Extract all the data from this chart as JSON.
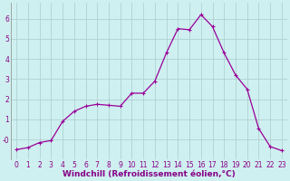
{
  "x": [
    0,
    1,
    2,
    3,
    4,
    5,
    6,
    7,
    8,
    9,
    10,
    11,
    12,
    13,
    14,
    15,
    16,
    17,
    18,
    19,
    20,
    21,
    22,
    23
  ],
  "y": [
    -0.5,
    -0.4,
    -0.15,
    -0.05,
    0.9,
    1.4,
    1.65,
    1.75,
    1.7,
    1.65,
    2.3,
    2.3,
    2.9,
    4.3,
    5.5,
    5.45,
    6.2,
    5.6,
    4.3,
    3.2,
    2.5,
    0.55,
    -0.35,
    -0.55
  ],
  "line_color": "#990099",
  "marker": "+",
  "marker_size": 3,
  "marker_lw": 0.8,
  "bg_color": "#cff0f0",
  "grid_color": "#aacccc",
  "xlabel": "Windchill (Refroidissement éolien,°C)",
  "xlabel_color": "#880088",
  "xlabel_fontsize": 6.5,
  "ylim": [
    -1.0,
    6.8
  ],
  "xlim": [
    -0.5,
    23.5
  ],
  "yticks": [
    0,
    1,
    2,
    3,
    4,
    5,
    6
  ],
  "ytick_labels": [
    "-0",
    "1",
    "2",
    "3",
    "4",
    "5",
    "6"
  ],
  "xticks": [
    0,
    1,
    2,
    3,
    4,
    5,
    6,
    7,
    8,
    9,
    10,
    11,
    12,
    13,
    14,
    15,
    16,
    17,
    18,
    19,
    20,
    21,
    22,
    23
  ],
  "tick_fontsize": 5.5,
  "tick_color": "#880088",
  "line_width": 0.9
}
